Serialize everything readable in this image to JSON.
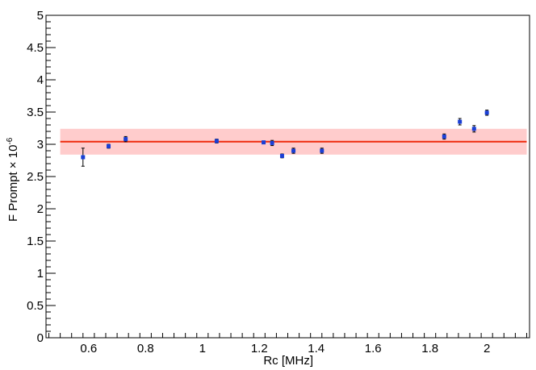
{
  "chart_data": {
    "type": "scatter",
    "title": "",
    "xlabel": "Rc [MHz]",
    "ylabel_main": "F Prompt × 10",
    "ylabel_exp": "-6",
    "xlim": [
      0.45,
      2.15
    ],
    "ylim": [
      0,
      5
    ],
    "x_ticks": [
      "0.6",
      "0.8",
      "1",
      "1.2",
      "1.4",
      "1.6",
      "1.8",
      "2"
    ],
    "y_ticks": [
      "0",
      "0.5",
      "1",
      "1.5",
      "2",
      "2.5",
      "3",
      "3.5",
      "4",
      "4.5",
      "5"
    ],
    "grid": false,
    "fit": {
      "x_range": [
        0.5,
        2.14
      ],
      "value": 3.04,
      "band": [
        2.84,
        3.24
      ],
      "line_color": "#ee2a0c",
      "band_color": "#ffcccc"
    },
    "marker_color": "#1a3fd6",
    "points": [
      {
        "x": 0.58,
        "y": 2.8,
        "err": 0.14
      },
      {
        "x": 0.67,
        "y": 2.97,
        "err": 0.03
      },
      {
        "x": 0.73,
        "y": 3.08,
        "err": 0.04
      },
      {
        "x": 1.05,
        "y": 3.05,
        "err": 0.03
      },
      {
        "x": 1.215,
        "y": 3.03,
        "err": 0.01
      },
      {
        "x": 1.245,
        "y": 3.02,
        "err": 0.04
      },
      {
        "x": 1.28,
        "y": 2.82,
        "err": 0.03
      },
      {
        "x": 1.32,
        "y": 2.9,
        "err": 0.04
      },
      {
        "x": 1.42,
        "y": 2.9,
        "err": 0.04
      },
      {
        "x": 1.85,
        "y": 3.12,
        "err": 0.04
      },
      {
        "x": 1.905,
        "y": 3.35,
        "err": 0.05
      },
      {
        "x": 1.955,
        "y": 3.24,
        "err": 0.05
      },
      {
        "x": 2.0,
        "y": 3.49,
        "err": 0.04
      }
    ]
  }
}
